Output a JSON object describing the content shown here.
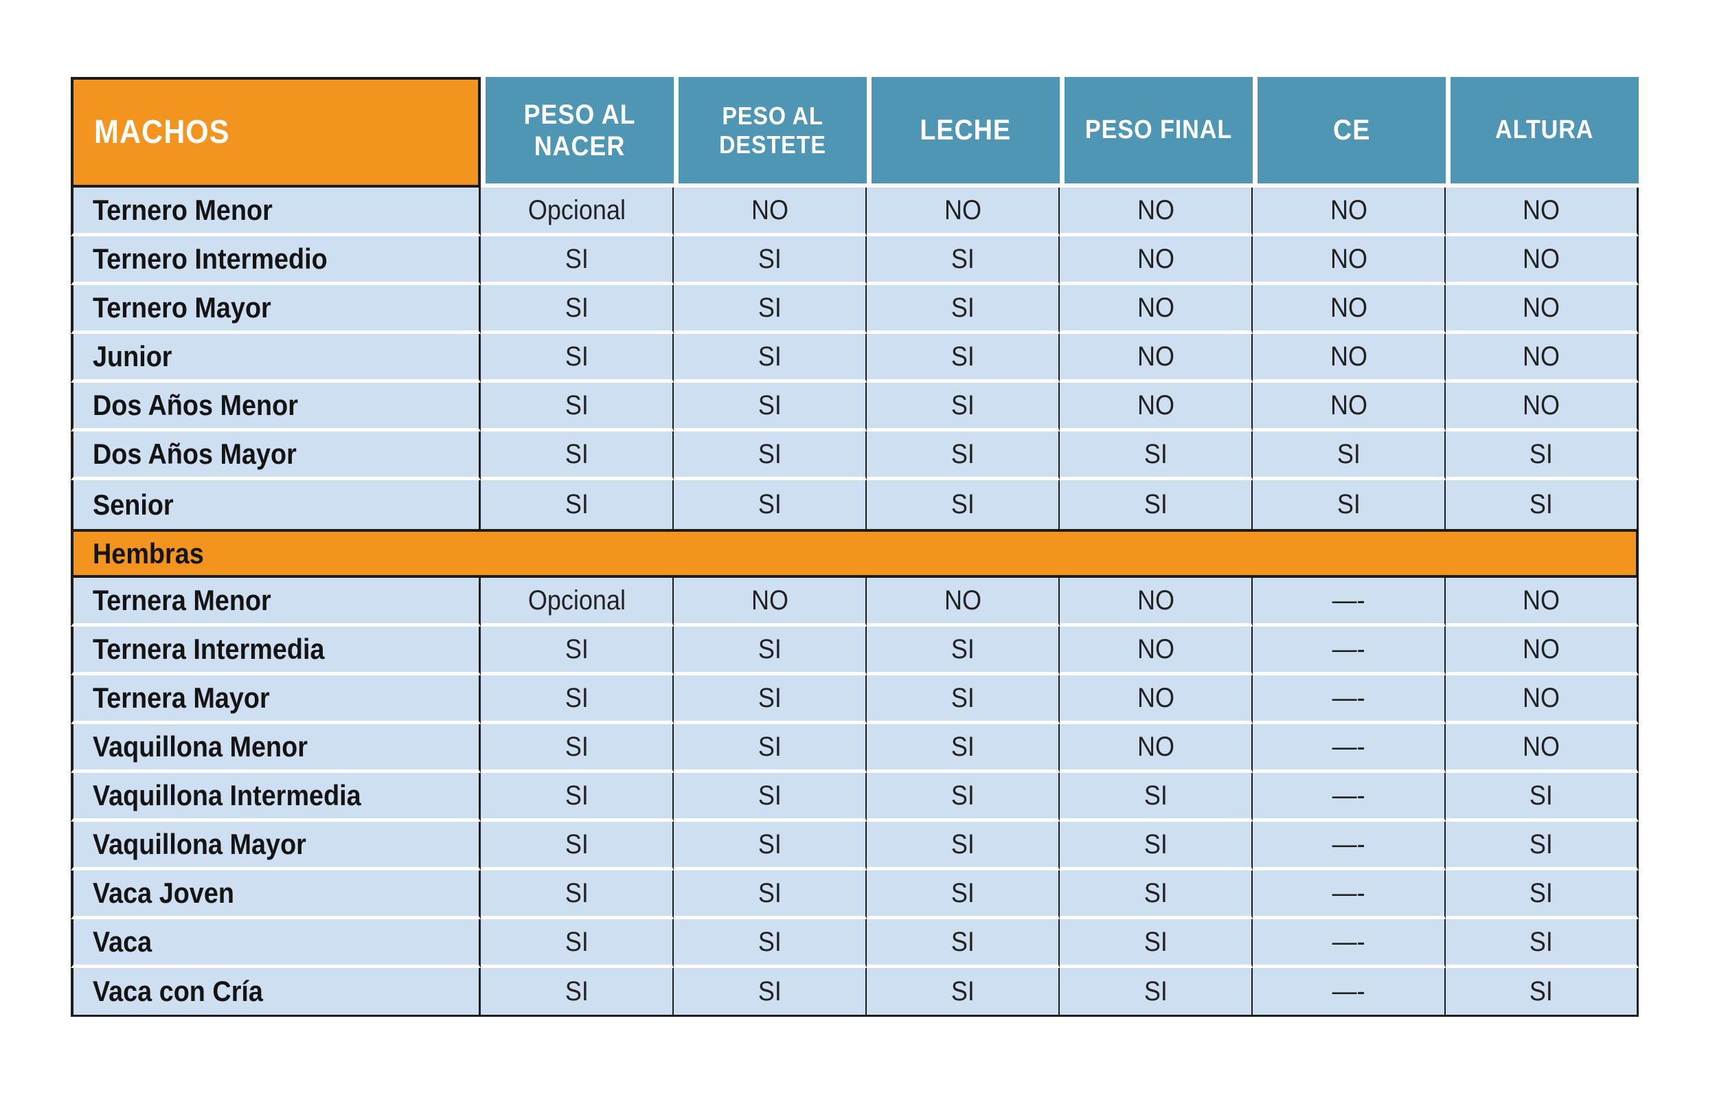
{
  "page": {
    "background": "#FFFFFF"
  },
  "table": {
    "header": {
      "corner_label": "MACHOS",
      "columns": [
        "PESO AL NACER",
        "PESO AL DESTETE",
        "LECHE",
        "PESO FINAL",
        "CE",
        "ALTURA"
      ]
    },
    "rows": [
      {
        "label": "Ternero Menor",
        "values": [
          "Opcional",
          "NO",
          "NO",
          "NO",
          "NO",
          "NO"
        ]
      },
      {
        "label": "Ternero Intermedio",
        "values": [
          "SI",
          "SI",
          "SI",
          "NO",
          "NO",
          "NO"
        ]
      },
      {
        "label": "Ternero Mayor",
        "values": [
          "SI",
          "SI",
          "SI",
          "NO",
          "NO",
          "NO"
        ]
      },
      {
        "label": "Junior",
        "values": [
          "SI",
          "SI",
          "SI",
          "NO",
          "NO",
          "NO"
        ]
      },
      {
        "label": "Dos Años Menor",
        "values": [
          "SI",
          "SI",
          "SI",
          "NO",
          "NO",
          "NO"
        ]
      },
      {
        "label": "Dos Años Mayor",
        "values": [
          "SI",
          "SI",
          "SI",
          "SI",
          "SI",
          "SI"
        ]
      },
      {
        "label": "Senior",
        "values": [
          "SI",
          "SI",
          "SI",
          "SI",
          "SI",
          "SI"
        ]
      },
      {
        "section": "Hembras"
      },
      {
        "label": "Ternera Menor",
        "values": [
          "Opcional",
          "NO",
          "NO",
          "NO",
          "—-",
          "NO"
        ]
      },
      {
        "label": "Ternera Intermedia",
        "values": [
          "SI",
          "SI",
          "SI",
          "NO",
          "—-",
          "NO"
        ]
      },
      {
        "label": "Ternera Mayor",
        "values": [
          "SI",
          "SI",
          "SI",
          "NO",
          "—-",
          "NO"
        ]
      },
      {
        "label": "Vaquillona Menor",
        "values": [
          "SI",
          "SI",
          "SI",
          "NO",
          "—-",
          "NO"
        ]
      },
      {
        "label": "Vaquillona Intermedia",
        "values": [
          "SI",
          "SI",
          "SI",
          "SI",
          "—-",
          "SI"
        ]
      },
      {
        "label": "Vaquillona Mayor",
        "values": [
          "SI",
          "SI",
          "SI",
          "SI",
          "—-",
          "SI"
        ]
      },
      {
        "label": "Vaca Joven",
        "values": [
          "SI",
          "SI",
          "SI",
          "SI",
          "—-",
          "SI"
        ]
      },
      {
        "label": "Vaca",
        "values": [
          "SI",
          "SI",
          "SI",
          "SI",
          "—-",
          "SI"
        ]
      },
      {
        "label": "Vaca con Cría",
        "values": [
          "SI",
          "SI",
          "SI",
          "SI",
          "—-",
          "SI"
        ]
      }
    ]
  },
  "colors": {
    "section_orange": "#F2941E",
    "header_blue": "#4E96B4",
    "row_blue": "#CEDFF1",
    "border_black": "#1C1C1C",
    "header_text": "#FFFFFF",
    "label_text": "#141414",
    "value_text": "#222222"
  },
  "chart_data": {
    "type": "table",
    "title": "",
    "corner_header": "MACHOS",
    "columns": [
      "PESO AL NACER",
      "PESO AL DESTETE",
      "LECHE",
      "PESO FINAL",
      "CE",
      "ALTURA"
    ],
    "sections": [
      {
        "name": "MACHOS",
        "rows": [
          {
            "category": "Ternero Menor",
            "values": [
              "Opcional",
              "NO",
              "NO",
              "NO",
              "NO",
              "NO"
            ]
          },
          {
            "category": "Ternero Intermedio",
            "values": [
              "SI",
              "SI",
              "SI",
              "NO",
              "NO",
              "NO"
            ]
          },
          {
            "category": "Ternero Mayor",
            "values": [
              "SI",
              "SI",
              "SI",
              "NO",
              "NO",
              "NO"
            ]
          },
          {
            "category": "Junior",
            "values": [
              "SI",
              "SI",
              "SI",
              "NO",
              "NO",
              "NO"
            ]
          },
          {
            "category": "Dos Años Menor",
            "values": [
              "SI",
              "SI",
              "SI",
              "NO",
              "NO",
              "NO"
            ]
          },
          {
            "category": "Dos Años Mayor",
            "values": [
              "SI",
              "SI",
              "SI",
              "SI",
              "SI",
              "SI"
            ]
          },
          {
            "category": "Senior",
            "values": [
              "SI",
              "SI",
              "SI",
              "SI",
              "SI",
              "SI"
            ]
          }
        ]
      },
      {
        "name": "Hembras",
        "rows": [
          {
            "category": "Ternera Menor",
            "values": [
              "Opcional",
              "NO",
              "NO",
              "NO",
              "—-",
              "NO"
            ]
          },
          {
            "category": "Ternera Intermedia",
            "values": [
              "SI",
              "SI",
              "SI",
              "NO",
              "—-",
              "NO"
            ]
          },
          {
            "category": "Ternera Mayor",
            "values": [
              "SI",
              "SI",
              "SI",
              "NO",
              "—-",
              "NO"
            ]
          },
          {
            "category": "Vaquillona Menor",
            "values": [
              "SI",
              "SI",
              "SI",
              "NO",
              "—-",
              "NO"
            ]
          },
          {
            "category": "Vaquillona Intermedia",
            "values": [
              "SI",
              "SI",
              "SI",
              "SI",
              "—-",
              "SI"
            ]
          },
          {
            "category": "Vaquillona Mayor",
            "values": [
              "SI",
              "SI",
              "SI",
              "SI",
              "—-",
              "SI"
            ]
          },
          {
            "category": "Vaca Joven",
            "values": [
              "SI",
              "SI",
              "SI",
              "SI",
              "—-",
              "SI"
            ]
          },
          {
            "category": "Vaca",
            "values": [
              "SI",
              "SI",
              "SI",
              "SI",
              "—-",
              "SI"
            ]
          },
          {
            "category": "Vaca con Cría",
            "values": [
              "SI",
              "SI",
              "SI",
              "SI",
              "—-",
              "SI"
            ]
          }
        ]
      }
    ],
    "legend_position": "none",
    "grid": true
  }
}
